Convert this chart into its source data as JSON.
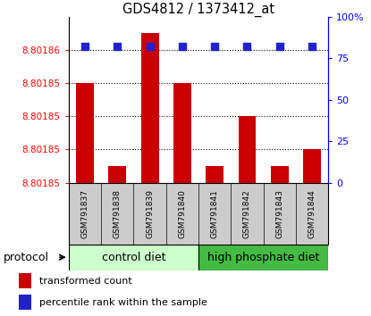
{
  "title": "GDS4812 / 1373412_at",
  "samples": [
    "GSM791837",
    "GSM791838",
    "GSM791839",
    "GSM791840",
    "GSM791841",
    "GSM791842",
    "GSM791843",
    "GSM791844"
  ],
  "transformed_counts": [
    8.801856,
    8.801851,
    8.801859,
    8.801856,
    8.801851,
    8.801854,
    8.801851,
    8.801852
  ],
  "percentile_ranks": [
    82,
    82,
    82,
    82,
    82,
    82,
    82,
    82
  ],
  "y_min": 8.80185,
  "y_max": 8.80186,
  "y_ticks": [
    8.80185,
    8.801852,
    8.801854,
    8.801856,
    8.801858
  ],
  "y_tick_labels": [
    "8.80185",
    "8.80185",
    "8.80185",
    "8.80185",
    "8.80186"
  ],
  "y2_ticks": [
    0,
    25,
    50,
    75,
    100
  ],
  "bar_color": "#cc0000",
  "dot_color": "#2222cc",
  "control_bg": "#ccffcc",
  "highp_bg": "#44bb44",
  "sample_label_bg": "#cccccc",
  "legend_bar_label": "transformed count",
  "legend_dot_label": "percentile rank within the sample",
  "protocol_label": "protocol",
  "control_label": "control diet",
  "highp_label": "high phosphate diet"
}
